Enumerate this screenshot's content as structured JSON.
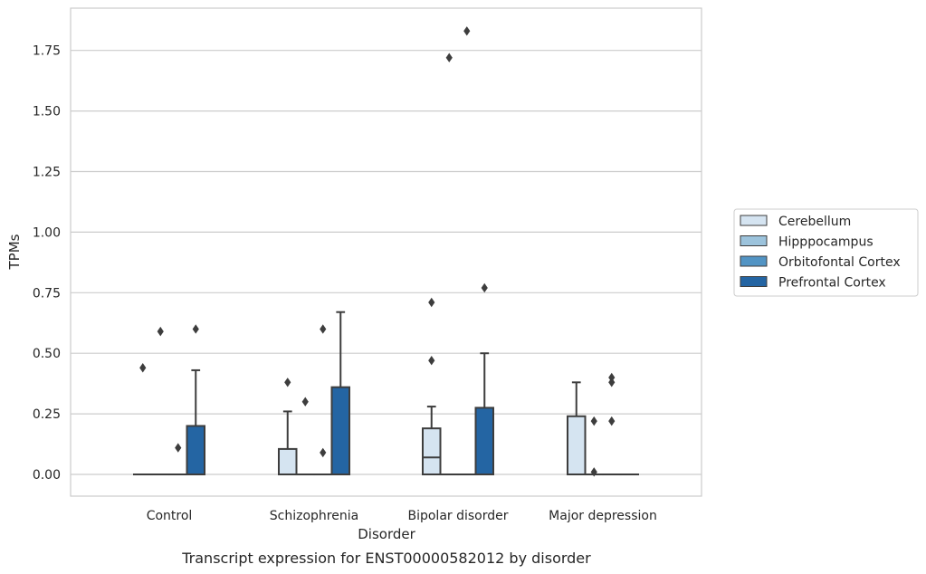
{
  "chart_data": {
    "type": "box",
    "caption": "Transcript expression for ENST00000582012 by disorder",
    "xlabel": "Disorder",
    "ylabel": "TPMs",
    "ylim": [
      -0.09,
      1.92
    ],
    "yticks": [
      "0.00",
      "0.25",
      "0.50",
      "0.75",
      "1.00",
      "1.25",
      "1.50",
      "1.75"
    ],
    "ytick_values": [
      0,
      0.25,
      0.5,
      0.75,
      1.0,
      1.25,
      1.5,
      1.75
    ],
    "grid": "horizontal",
    "legend_position": "right",
    "categories": [
      "Control",
      "Schizophrenia",
      "Bipolar disorder",
      "Major depression"
    ],
    "series": [
      {
        "name": "Cerebellum",
        "color": "#d5e4f1",
        "boxes": [
          {
            "q1": 0,
            "median": 0,
            "q3": 0,
            "whisker_low": 0,
            "whisker_high": 0,
            "outliers": [
              0.44
            ]
          },
          {
            "q1": 0,
            "median": 0,
            "q3": 0.105,
            "whisker_low": 0,
            "whisker_high": 0.26,
            "outliers": [
              0.38
            ]
          },
          {
            "q1": 0,
            "median": 0.07,
            "q3": 0.19,
            "whisker_low": 0,
            "whisker_high": 0.28,
            "outliers": [
              0.47,
              0.71
            ]
          },
          {
            "q1": 0,
            "median": 0,
            "q3": 0.24,
            "whisker_low": 0,
            "whisker_high": 0.38,
            "outliers": []
          }
        ]
      },
      {
        "name": "Hipppocampus",
        "color": "#9cc3dc",
        "boxes": [
          {
            "q1": 0,
            "median": 0,
            "q3": 0,
            "whisker_low": 0,
            "whisker_high": 0,
            "outliers": [
              0.59
            ]
          },
          {
            "q1": 0,
            "median": 0,
            "q3": 0,
            "whisker_low": 0,
            "whisker_high": 0,
            "outliers": [
              0.3
            ]
          },
          {
            "q1": 0,
            "median": 0,
            "q3": 0,
            "whisker_low": 0,
            "whisker_high": 0,
            "outliers": [
              1.72
            ]
          },
          {
            "q1": 0,
            "median": 0,
            "q3": 0,
            "whisker_low": 0,
            "whisker_high": 0,
            "outliers": [
              0.01,
              0.22
            ]
          }
        ]
      },
      {
        "name": "Orbitofontal Cortex",
        "color": "#5294c4",
        "boxes": [
          {
            "q1": 0,
            "median": 0,
            "q3": 0,
            "whisker_low": 0,
            "whisker_high": 0,
            "outliers": [
              0.11
            ]
          },
          {
            "q1": 0,
            "median": 0,
            "q3": 0,
            "whisker_low": 0,
            "whisker_high": 0,
            "outliers": [
              0.09,
              0.6
            ]
          },
          {
            "q1": 0,
            "median": 0,
            "q3": 0,
            "whisker_low": 0,
            "whisker_high": 0,
            "outliers": [
              1.83
            ]
          },
          {
            "q1": 0,
            "median": 0,
            "q3": 0,
            "whisker_low": 0,
            "whisker_high": 0,
            "outliers": [
              0.22,
              0.38,
              0.4
            ]
          }
        ]
      },
      {
        "name": "Prefrontal Cortex",
        "color": "#2465a3",
        "boxes": [
          {
            "q1": 0,
            "median": 0,
            "q3": 0.2,
            "whisker_low": 0,
            "whisker_high": 0.43,
            "outliers": [
              0.6
            ]
          },
          {
            "q1": 0,
            "median": 0,
            "q3": 0.36,
            "whisker_low": 0,
            "whisker_high": 0.67,
            "outliers": []
          },
          {
            "q1": 0,
            "median": 0,
            "q3": 0.275,
            "whisker_low": 0,
            "whisker_high": 0.5,
            "outliers": [
              0.77
            ]
          },
          {
            "q1": 0,
            "median": 0,
            "q3": 0,
            "whisker_low": 0,
            "whisker_high": 0,
            "outliers": []
          }
        ]
      }
    ]
  },
  "colors": {
    "grid": "#cccccc",
    "frame": "#cccccc",
    "line": "#3d3d3d"
  }
}
